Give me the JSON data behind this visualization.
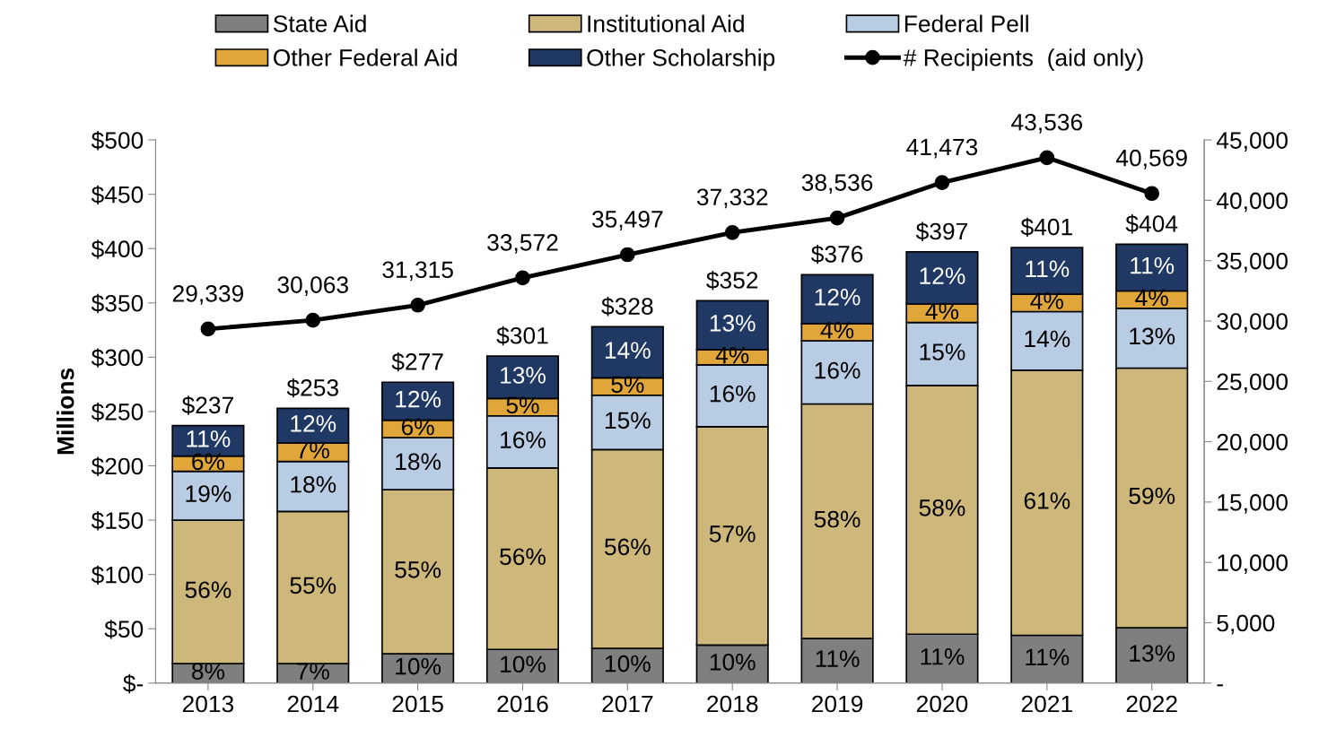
{
  "chart_data": {
    "type": "bar",
    "stacked": true,
    "categories": [
      "2013",
      "2014",
      "2015",
      "2016",
      "2017",
      "2018",
      "2019",
      "2020",
      "2021",
      "2022"
    ],
    "ylabel": "Millions",
    "ylim": [
      0,
      500
    ],
    "yticks": [
      {
        "value": 0,
        "label": "$-"
      },
      {
        "value": 50,
        "label": "$50"
      },
      {
        "value": 100,
        "label": "$100"
      },
      {
        "value": 150,
        "label": "$150"
      },
      {
        "value": 200,
        "label": "$200"
      },
      {
        "value": 250,
        "label": "$250"
      },
      {
        "value": 300,
        "label": "$300"
      },
      {
        "value": 350,
        "label": "$350"
      },
      {
        "value": 400,
        "label": "$400"
      },
      {
        "value": 450,
        "label": "$450"
      },
      {
        "value": 500,
        "label": "$500"
      }
    ],
    "y2lim": [
      0,
      45000
    ],
    "y2ticks": [
      {
        "value": 0,
        "label": "-"
      },
      {
        "value": 5000,
        "label": "5,000"
      },
      {
        "value": 10000,
        "label": "10,000"
      },
      {
        "value": 15000,
        "label": "15,000"
      },
      {
        "value": 20000,
        "label": "20,000"
      },
      {
        "value": 25000,
        "label": "25,000"
      },
      {
        "value": 30000,
        "label": "30,000"
      },
      {
        "value": 35000,
        "label": "35,000"
      },
      {
        "value": 40000,
        "label": "40,000"
      },
      {
        "value": 45000,
        "label": "45,000"
      }
    ],
    "legend": "top",
    "grid": false,
    "totals": [
      "$237",
      "$253",
      "$277",
      "$301",
      "$328",
      "$352",
      "$376",
      "$397",
      "$401",
      "$404"
    ],
    "series": [
      {
        "name": "State Aid",
        "color": "#7f7f7f",
        "values": [
          18,
          18,
          27,
          31,
          32,
          35,
          41,
          45,
          44,
          51
        ]
      },
      {
        "name": "Institutional Aid",
        "color": "#cdb77a",
        "values": [
          132,
          140,
          151,
          167,
          183,
          201,
          216,
          229,
          244,
          239
        ]
      },
      {
        "name": "Federal Pell",
        "color": "#b8cce4",
        "values": [
          45,
          46,
          48,
          48,
          50,
          57,
          58,
          58,
          54,
          55
        ]
      },
      {
        "name": "Other Federal Aid",
        "color": "#e0a63a",
        "values": [
          14,
          17,
          16,
          16,
          16,
          14,
          16,
          17,
          16,
          16
        ]
      },
      {
        "name": "Other Scholarship",
        "color": "#1f3864",
        "values": [
          28,
          32,
          35,
          39,
          47,
          45,
          45,
          48,
          43,
          43
        ]
      },
      {
        "name": "# Recipients  (aid only)",
        "type": "line",
        "axis": "y2",
        "color": "#000000",
        "marker": "circle",
        "line_style": "solid",
        "values": [
          29339,
          30063,
          31315,
          33572,
          35497,
          37332,
          38536,
          41473,
          43536,
          40569
        ],
        "value_labels": [
          "29,339",
          "30,063",
          "31,315",
          "33,572",
          "35,497",
          "37,332",
          "38,536",
          "41,473",
          "43,536",
          "40,569"
        ]
      }
    ],
    "annotations": [
      "8%",
      "56%",
      "19%",
      "6%",
      "11%",
      "7%",
      "55%",
      "18%",
      "7%",
      "12%",
      "10%",
      "55%",
      "18%",
      "6%",
      "12%",
      "10%",
      "56%",
      "16%",
      "5%",
      "13%",
      "10%",
      "56%",
      "15%",
      "5%",
      "14%",
      "10%",
      "57%",
      "16%",
      "4%",
      "13%",
      "11%",
      "58%",
      "16%",
      "4%",
      "12%",
      "11%",
      "58%",
      "15%",
      "4%",
      "12%",
      "11%",
      "61%",
      "14%",
      "4%",
      "11%",
      "13%",
      "59%",
      "13%",
      "4%",
      "11%"
    ]
  }
}
